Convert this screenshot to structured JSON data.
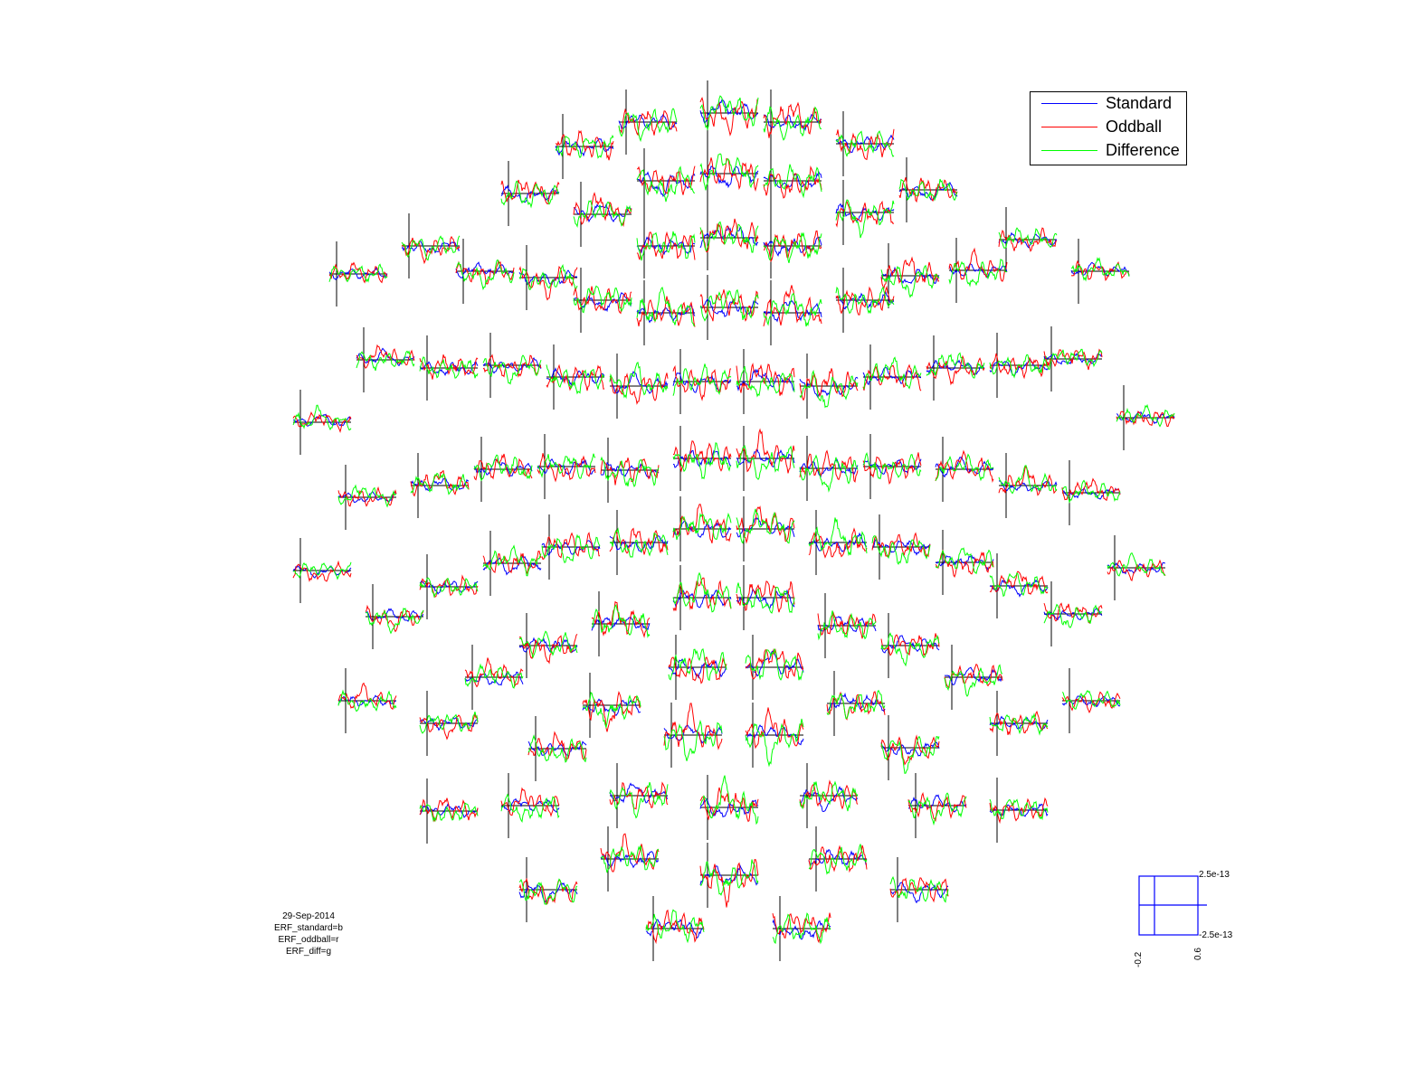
{
  "chart_data": {
    "type": "line",
    "series": [
      {
        "name": "Standard",
        "color": "#0000ff"
      },
      {
        "name": "Oddball",
        "color": "#ff0000"
      },
      {
        "name": "Difference",
        "color": "#00ff00"
      }
    ],
    "legend_position": "top-right",
    "xlim": [
      -0.2,
      0.6
    ],
    "ylim": [
      -2.5e-13,
      2.5e-13
    ],
    "scale": {
      "x_min_label": "-0.2",
      "x_max_label": "0.6",
      "y_max_label": "2.5e-13",
      "y_min_label": "-2.5e-13"
    },
    "info_text": [
      "29-Sep-2014",
      "ERF_standard=b",
      "ERF_oddball=r",
      "ERF_diff=g"
    ],
    "channel_count": 144
  }
}
